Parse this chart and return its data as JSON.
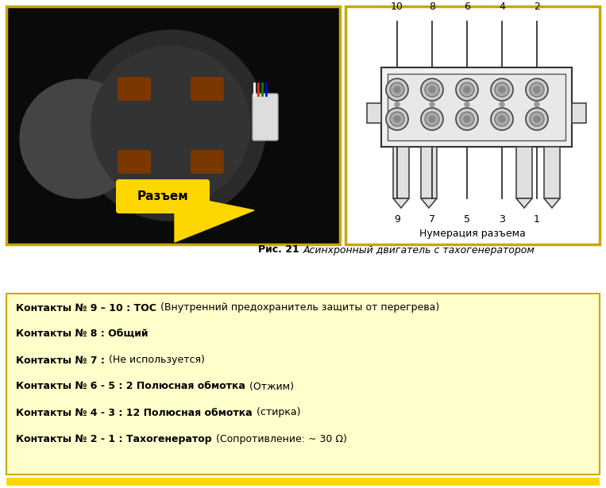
{
  "bg_color": "#ffffff",
  "caption_bold": "Рис. 21 ",
  "caption_italic": "Асинхронный двигатель с тахогенератором",
  "yellow_box_bg": "#ffffcc",
  "yellow_box_border": "#c8a800",
  "image_border_color": "#c8a800",
  "lines": [
    {
      "bold_part": "Контакты № 9 – 10 : ТОС",
      "normal_part": " (Внутренний предохранитель защиты от перегрева)"
    },
    {
      "bold_part": "Контакты № 8 : Общий",
      "normal_part": ""
    },
    {
      "bold_part": "Контакты № 7 :",
      "normal_part": " (Не используется)"
    },
    {
      "bold_part": "Контакты № 6 - 5 : 2 Полюсная обмотка",
      "normal_part": " (Отжим)"
    },
    {
      "bold_part": "Контакты № 4 - 3 : 12 Полюсная обмотка",
      "normal_part": " (стирка)"
    },
    {
      "bold_part": "Контакты № 2 - 1 : Тахогенератор",
      "normal_part": " (Сопротивление: ~ 30 Ω)"
    }
  ],
  "connector_label": "Разъем",
  "numbering_label": "Нумерация разъема",
  "top_numbers": [
    "10",
    "8",
    "6",
    "4",
    "2"
  ],
  "bottom_numbers": [
    "9",
    "7",
    "5",
    "3",
    "1"
  ],
  "motor_bg": "#0a0a0a",
  "diag_bg": "#ffffff"
}
